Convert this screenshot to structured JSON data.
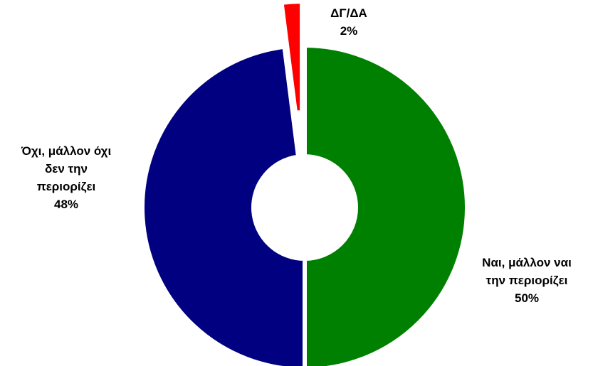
{
  "chart_data": {
    "type": "pie",
    "donut": true,
    "title": "",
    "slices": [
      {
        "label_lines": [
          "Ναι, μάλλον ναι",
          "την περιορίζει"
        ],
        "value": 50,
        "value_label": "50%",
        "color": "#008000"
      },
      {
        "label_lines": [
          "Όχι, μάλλον όχι",
          "δεν την",
          "περιορίζει"
        ],
        "value": 48,
        "value_label": "48%",
        "color": "#000080"
      },
      {
        "label_lines": [
          "ΔΓ/ΔΑ"
        ],
        "value": 2,
        "value_label": "2%",
        "color": "#ff0000",
        "exploded": true
      }
    ]
  }
}
